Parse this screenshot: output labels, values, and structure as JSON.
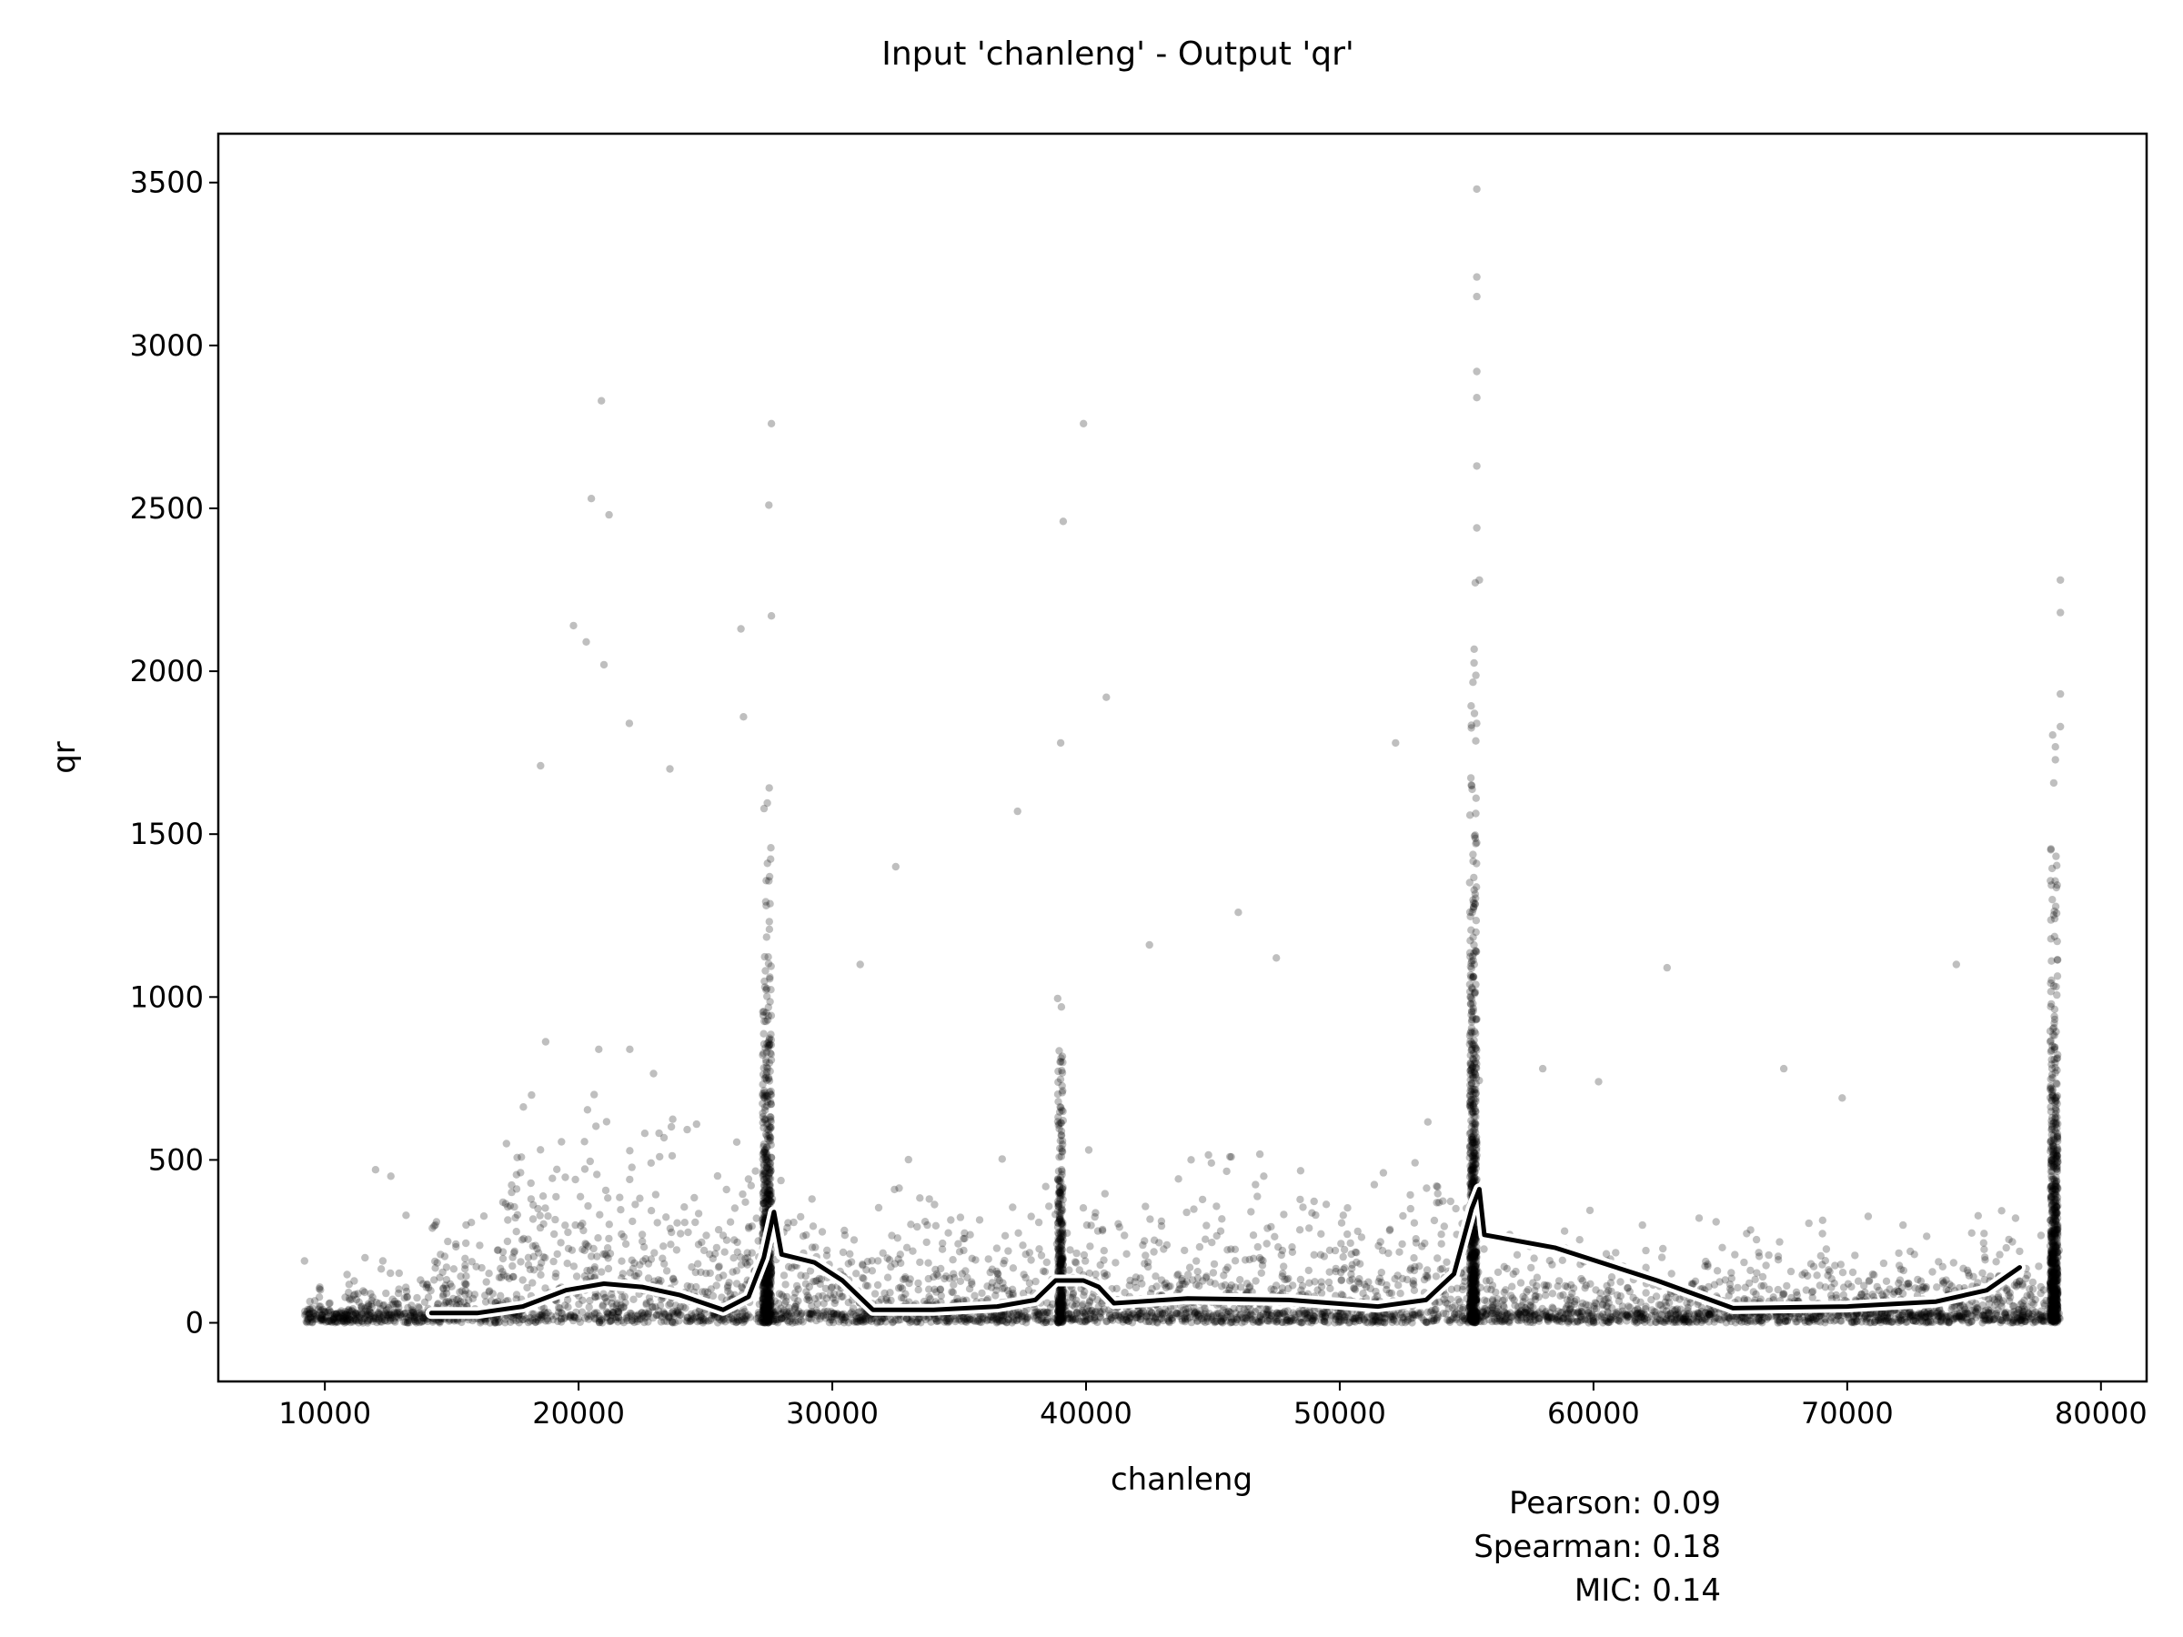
{
  "chart_data": {
    "type": "scatter",
    "title": "Input 'chanleng' - Output 'qr'",
    "xlabel": "chanleng",
    "ylabel": "qr",
    "xlim": [
      5800,
      81800
    ],
    "ylim": [
      -180,
      3650
    ],
    "xticks": [
      10000,
      20000,
      30000,
      40000,
      50000,
      60000,
      70000,
      80000
    ],
    "yticks": [
      0,
      500,
      1000,
      1500,
      2000,
      2500,
      3000,
      3500
    ],
    "grid": false,
    "point_color": "#000000",
    "point_opacity": 0.25,
    "trend_line_color": "#000000",
    "trend_line_halo_color": "#ffffff",
    "outlier_points": [
      {
        "x": 20900,
        "y": 2830
      },
      {
        "x": 20500,
        "y": 2530
      },
      {
        "x": 21200,
        "y": 2480
      },
      {
        "x": 19800,
        "y": 2140
      },
      {
        "x": 20300,
        "y": 2090
      },
      {
        "x": 21000,
        "y": 2020
      },
      {
        "x": 22000,
        "y": 1840
      },
      {
        "x": 18500,
        "y": 1710
      },
      {
        "x": 23600,
        "y": 1700
      },
      {
        "x": 27600,
        "y": 2760
      },
      {
        "x": 27500,
        "y": 2510
      },
      {
        "x": 27600,
        "y": 2170
      },
      {
        "x": 26400,
        "y": 2130
      },
      {
        "x": 26500,
        "y": 1860
      },
      {
        "x": 39900,
        "y": 2760
      },
      {
        "x": 39100,
        "y": 2460
      },
      {
        "x": 40800,
        "y": 1920
      },
      {
        "x": 39000,
        "y": 1780
      },
      {
        "x": 55400,
        "y": 3480
      },
      {
        "x": 55400,
        "y": 3210
      },
      {
        "x": 55400,
        "y": 3150
      },
      {
        "x": 55400,
        "y": 2920
      },
      {
        "x": 55400,
        "y": 2840
      },
      {
        "x": 55400,
        "y": 2630
      },
      {
        "x": 55400,
        "y": 2440
      },
      {
        "x": 55500,
        "y": 2280
      },
      {
        "x": 52200,
        "y": 1780
      },
      {
        "x": 78400,
        "y": 2280
      },
      {
        "x": 78400,
        "y": 2180
      },
      {
        "x": 78400,
        "y": 1930
      },
      {
        "x": 78400,
        "y": 1830
      },
      {
        "x": 62900,
        "y": 1090
      },
      {
        "x": 74300,
        "y": 1100
      },
      {
        "x": 32500,
        "y": 1400
      },
      {
        "x": 37300,
        "y": 1570
      },
      {
        "x": 46000,
        "y": 1260
      },
      {
        "x": 31100,
        "y": 1100
      },
      {
        "x": 42500,
        "y": 1160
      },
      {
        "x": 47500,
        "y": 1120
      },
      {
        "x": 12000,
        "y": 470
      },
      {
        "x": 12600,
        "y": 450
      },
      {
        "x": 9200,
        "y": 190
      },
      {
        "x": 13200,
        "y": 330
      },
      {
        "x": 14400,
        "y": 310
      },
      {
        "x": 58000,
        "y": 780
      },
      {
        "x": 60200,
        "y": 740
      },
      {
        "x": 67500,
        "y": 780
      },
      {
        "x": 69800,
        "y": 690
      }
    ],
    "trend_line": [
      {
        "x": 14200,
        "y": 30
      },
      {
        "x": 16000,
        "y": 30
      },
      {
        "x": 17800,
        "y": 50
      },
      {
        "x": 19500,
        "y": 100
      },
      {
        "x": 21000,
        "y": 120
      },
      {
        "x": 22500,
        "y": 110
      },
      {
        "x": 24000,
        "y": 85
      },
      {
        "x": 25700,
        "y": 40
      },
      {
        "x": 26700,
        "y": 80
      },
      {
        "x": 27300,
        "y": 200
      },
      {
        "x": 27700,
        "y": 340
      },
      {
        "x": 28000,
        "y": 210
      },
      {
        "x": 29300,
        "y": 185
      },
      {
        "x": 30400,
        "y": 130
      },
      {
        "x": 31600,
        "y": 40
      },
      {
        "x": 34000,
        "y": 40
      },
      {
        "x": 36500,
        "y": 50
      },
      {
        "x": 38000,
        "y": 70
      },
      {
        "x": 38800,
        "y": 130
      },
      {
        "x": 39900,
        "y": 130
      },
      {
        "x": 40500,
        "y": 110
      },
      {
        "x": 41100,
        "y": 60
      },
      {
        "x": 44000,
        "y": 75
      },
      {
        "x": 48000,
        "y": 70
      },
      {
        "x": 51500,
        "y": 50
      },
      {
        "x": 53400,
        "y": 70
      },
      {
        "x": 54500,
        "y": 150
      },
      {
        "x": 55200,
        "y": 350
      },
      {
        "x": 55500,
        "y": 410
      },
      {
        "x": 55700,
        "y": 270
      },
      {
        "x": 58500,
        "y": 230
      },
      {
        "x": 62500,
        "y": 130
      },
      {
        "x": 65500,
        "y": 45
      },
      {
        "x": 70000,
        "y": 50
      },
      {
        "x": 73500,
        "y": 65
      },
      {
        "x": 75500,
        "y": 100
      },
      {
        "x": 76800,
        "y": 170
      }
    ],
    "stats": [
      {
        "label": "Pearson",
        "value": "0.09"
      },
      {
        "label": "Spearman",
        "value": "0.18"
      },
      {
        "label": "MIC",
        "value": "0.14"
      }
    ]
  }
}
